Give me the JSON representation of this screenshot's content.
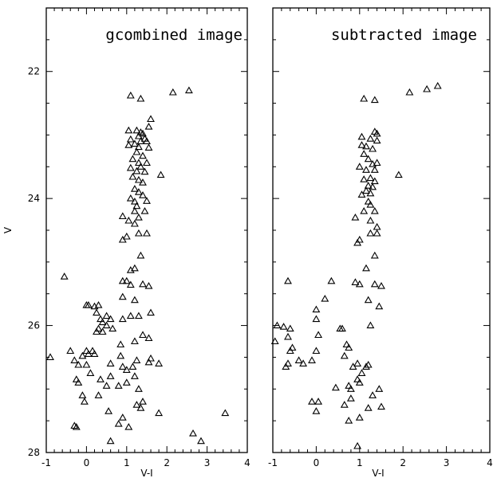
{
  "chart_data": [
    {
      "type": "scatter",
      "title": "gcombined image",
      "xlabel": "V-I",
      "ylabel": "V",
      "xlim": [
        -1,
        4
      ],
      "ylim": [
        28,
        21
      ],
      "y_inverted": true,
      "x_ticks": [
        "-1",
        "0",
        "1",
        "2",
        "3",
        "4"
      ],
      "y_ticks": [
        "22",
        "24",
        "26",
        "28"
      ],
      "marker": "open-triangle",
      "points": [
        [
          1.1,
          22.38
        ],
        [
          1.35,
          22.43
        ],
        [
          2.15,
          22.33
        ],
        [
          2.55,
          22.3
        ],
        [
          1.6,
          22.75
        ],
        [
          1.55,
          22.87
        ],
        [
          1.05,
          22.93
        ],
        [
          1.25,
          22.93
        ],
        [
          1.35,
          22.96
        ],
        [
          1.4,
          22.98
        ],
        [
          1.3,
          23.02
        ],
        [
          1.45,
          23.06
        ],
        [
          1.1,
          23.07
        ],
        [
          1.35,
          23.1
        ],
        [
          1.5,
          23.1
        ],
        [
          1.2,
          23.14
        ],
        [
          1.05,
          23.16
        ],
        [
          1.3,
          23.19
        ],
        [
          1.55,
          23.2
        ],
        [
          1.25,
          23.27
        ],
        [
          1.4,
          23.33
        ],
        [
          1.15,
          23.38
        ],
        [
          1.3,
          23.44
        ],
        [
          1.5,
          23.44
        ],
        [
          1.35,
          23.5
        ],
        [
          1.1,
          23.52
        ],
        [
          1.25,
          23.57
        ],
        [
          1.45,
          23.58
        ],
        [
          1.85,
          23.63
        ],
        [
          1.15,
          23.66
        ],
        [
          1.3,
          23.71
        ],
        [
          1.4,
          23.75
        ],
        [
          1.2,
          23.85
        ],
        [
          1.3,
          23.9
        ],
        [
          1.4,
          23.95
        ],
        [
          1.1,
          24.0
        ],
        [
          1.2,
          24.05
        ],
        [
          1.25,
          24.12
        ],
        [
          1.5,
          24.04
        ],
        [
          1.2,
          24.2
        ],
        [
          1.45,
          24.2
        ],
        [
          1.3,
          24.3
        ],
        [
          0.9,
          24.28
        ],
        [
          1.05,
          24.35
        ],
        [
          1.2,
          24.4
        ],
        [
          1.3,
          24.55
        ],
        [
          1.5,
          24.55
        ],
        [
          1.0,
          24.6
        ],
        [
          0.9,
          24.65
        ],
        [
          1.35,
          24.9
        ],
        [
          1.2,
          25.1
        ],
        [
          1.1,
          25.13
        ],
        [
          0.9,
          25.3
        ],
        [
          1.0,
          25.3
        ],
        [
          1.4,
          25.35
        ],
        [
          1.1,
          25.36
        ],
        [
          1.55,
          25.38
        ],
        [
          0.9,
          25.55
        ],
        [
          -0.55,
          25.23
        ],
        [
          0.0,
          25.68
        ],
        [
          0.05,
          25.68
        ],
        [
          0.2,
          25.7
        ],
        [
          0.3,
          25.68
        ],
        [
          0.25,
          25.8
        ],
        [
          1.2,
          25.6
        ],
        [
          1.6,
          25.8
        ],
        [
          0.5,
          25.85
        ],
        [
          0.6,
          25.9
        ],
        [
          0.35,
          25.9
        ],
        [
          1.1,
          25.85
        ],
        [
          1.3,
          25.85
        ],
        [
          0.9,
          25.9
        ],
        [
          0.4,
          25.95
        ],
        [
          0.5,
          26.0
        ],
        [
          0.3,
          26.05
        ],
        [
          0.65,
          26.05
        ],
        [
          0.25,
          26.1
        ],
        [
          0.4,
          26.1
        ],
        [
          1.4,
          26.15
        ],
        [
          1.2,
          26.25
        ],
        [
          1.55,
          26.2
        ],
        [
          0.85,
          26.3
        ],
        [
          -0.4,
          26.4
        ],
        [
          0.15,
          26.4
        ],
        [
          0.0,
          26.4
        ],
        [
          0.2,
          26.45
        ],
        [
          0.05,
          26.45
        ],
        [
          -0.1,
          26.48
        ],
        [
          -0.9,
          26.5
        ],
        [
          -0.3,
          26.55
        ],
        [
          0.85,
          26.48
        ],
        [
          1.6,
          26.52
        ],
        [
          1.25,
          26.55
        ],
        [
          -0.2,
          26.62
        ],
        [
          0.0,
          26.62
        ],
        [
          0.6,
          26.6
        ],
        [
          1.55,
          26.58
        ],
        [
          1.8,
          26.6
        ],
        [
          0.9,
          26.65
        ],
        [
          1.15,
          26.65
        ],
        [
          0.1,
          26.75
        ],
        [
          1.0,
          26.7
        ],
        [
          -0.25,
          26.85
        ],
        [
          0.35,
          26.85
        ],
        [
          0.6,
          26.8
        ],
        [
          1.2,
          26.8
        ],
        [
          -0.2,
          26.9
        ],
        [
          0.5,
          26.95
        ],
        [
          0.8,
          26.95
        ],
        [
          1.0,
          26.9
        ],
        [
          1.3,
          27.0
        ],
        [
          -0.1,
          27.1
        ],
        [
          0.3,
          27.1
        ],
        [
          -0.05,
          27.2
        ],
        [
          1.4,
          27.2
        ],
        [
          1.25,
          27.25
        ],
        [
          1.35,
          27.3
        ],
        [
          0.55,
          27.35
        ],
        [
          1.8,
          27.38
        ],
        [
          3.45,
          27.38
        ],
        [
          0.9,
          27.45
        ],
        [
          -0.3,
          27.58
        ],
        [
          -0.25,
          27.6
        ],
        [
          0.8,
          27.55
        ],
        [
          1.05,
          27.6
        ],
        [
          2.65,
          27.7
        ],
        [
          2.85,
          27.82
        ],
        [
          0.6,
          27.82
        ]
      ]
    },
    {
      "type": "scatter",
      "title": "subtracted image",
      "xlabel": "V-I",
      "xlim": [
        -1,
        4
      ],
      "ylim": [
        28,
        21
      ],
      "y_inverted": true,
      "x_ticks": [
        "-1",
        "0",
        "1",
        "2",
        "3",
        "4"
      ],
      "marker": "open-triangle",
      "points": [
        [
          1.1,
          22.43
        ],
        [
          1.35,
          22.45
        ],
        [
          2.15,
          22.33
        ],
        [
          2.55,
          22.28
        ],
        [
          2.8,
          22.23
        ],
        [
          1.35,
          22.95
        ],
        [
          1.4,
          22.98
        ],
        [
          1.05,
          23.03
        ],
        [
          1.25,
          23.06
        ],
        [
          1.4,
          23.09
        ],
        [
          1.05,
          23.16
        ],
        [
          1.15,
          23.18
        ],
        [
          1.3,
          23.22
        ],
        [
          1.1,
          23.3
        ],
        [
          1.2,
          23.38
        ],
        [
          1.4,
          23.44
        ],
        [
          1.3,
          23.46
        ],
        [
          1.0,
          23.5
        ],
        [
          1.15,
          23.55
        ],
        [
          1.35,
          23.55
        ],
        [
          1.9,
          23.63
        ],
        [
          1.25,
          23.68
        ],
        [
          1.1,
          23.7
        ],
        [
          1.35,
          23.73
        ],
        [
          1.2,
          23.8
        ],
        [
          1.3,
          23.82
        ],
        [
          1.15,
          23.88
        ],
        [
          1.25,
          23.92
        ],
        [
          1.05,
          23.94
        ],
        [
          1.2,
          24.05
        ],
        [
          1.25,
          24.1
        ],
        [
          1.1,
          24.2
        ],
        [
          1.35,
          24.2
        ],
        [
          0.9,
          24.3
        ],
        [
          1.25,
          24.35
        ],
        [
          1.4,
          24.45
        ],
        [
          1.25,
          24.55
        ],
        [
          1.4,
          24.55
        ],
        [
          1.0,
          24.65
        ],
        [
          0.95,
          24.7
        ],
        [
          1.35,
          24.9
        ],
        [
          1.15,
          25.1
        ],
        [
          0.35,
          25.3
        ],
        [
          0.9,
          25.32
        ],
        [
          1.0,
          25.35
        ],
        [
          1.35,
          25.35
        ],
        [
          1.5,
          25.38
        ],
        [
          -0.65,
          25.3
        ],
        [
          0.2,
          25.58
        ],
        [
          1.2,
          25.6
        ],
        [
          1.45,
          25.7
        ],
        [
          0.0,
          25.75
        ],
        [
          0.0,
          25.9
        ],
        [
          -0.9,
          26.0
        ],
        [
          -0.75,
          26.02
        ],
        [
          -0.6,
          26.05
        ],
        [
          0.55,
          26.05
        ],
        [
          0.6,
          26.05
        ],
        [
          1.25,
          26.0
        ],
        [
          0.05,
          26.15
        ],
        [
          -0.65,
          26.18
        ],
        [
          -0.95,
          26.25
        ],
        [
          -0.55,
          26.35
        ],
        [
          -0.6,
          26.4
        ],
        [
          0.7,
          26.3
        ],
        [
          0.75,
          26.35
        ],
        [
          0.0,
          26.4
        ],
        [
          0.65,
          26.48
        ],
        [
          -0.1,
          26.55
        ],
        [
          -0.4,
          26.55
        ],
        [
          -0.65,
          26.6
        ],
        [
          -0.7,
          26.65
        ],
        [
          -0.3,
          26.6
        ],
        [
          0.95,
          26.6
        ],
        [
          0.85,
          26.65
        ],
        [
          1.15,
          26.65
        ],
        [
          1.2,
          26.62
        ],
        [
          1.05,
          26.75
        ],
        [
          0.95,
          26.85
        ],
        [
          1.0,
          26.9
        ],
        [
          0.75,
          26.95
        ],
        [
          0.8,
          27.0
        ],
        [
          0.45,
          26.98
        ],
        [
          1.45,
          27.0
        ],
        [
          1.3,
          27.1
        ],
        [
          0.8,
          27.15
        ],
        [
          0.65,
          27.25
        ],
        [
          -0.1,
          27.2
        ],
        [
          0.05,
          27.2
        ],
        [
          0.0,
          27.35
        ],
        [
          1.5,
          27.28
        ],
        [
          1.2,
          27.3
        ],
        [
          0.75,
          27.5
        ],
        [
          1.0,
          27.45
        ],
        [
          0.95,
          27.9
        ]
      ]
    }
  ]
}
